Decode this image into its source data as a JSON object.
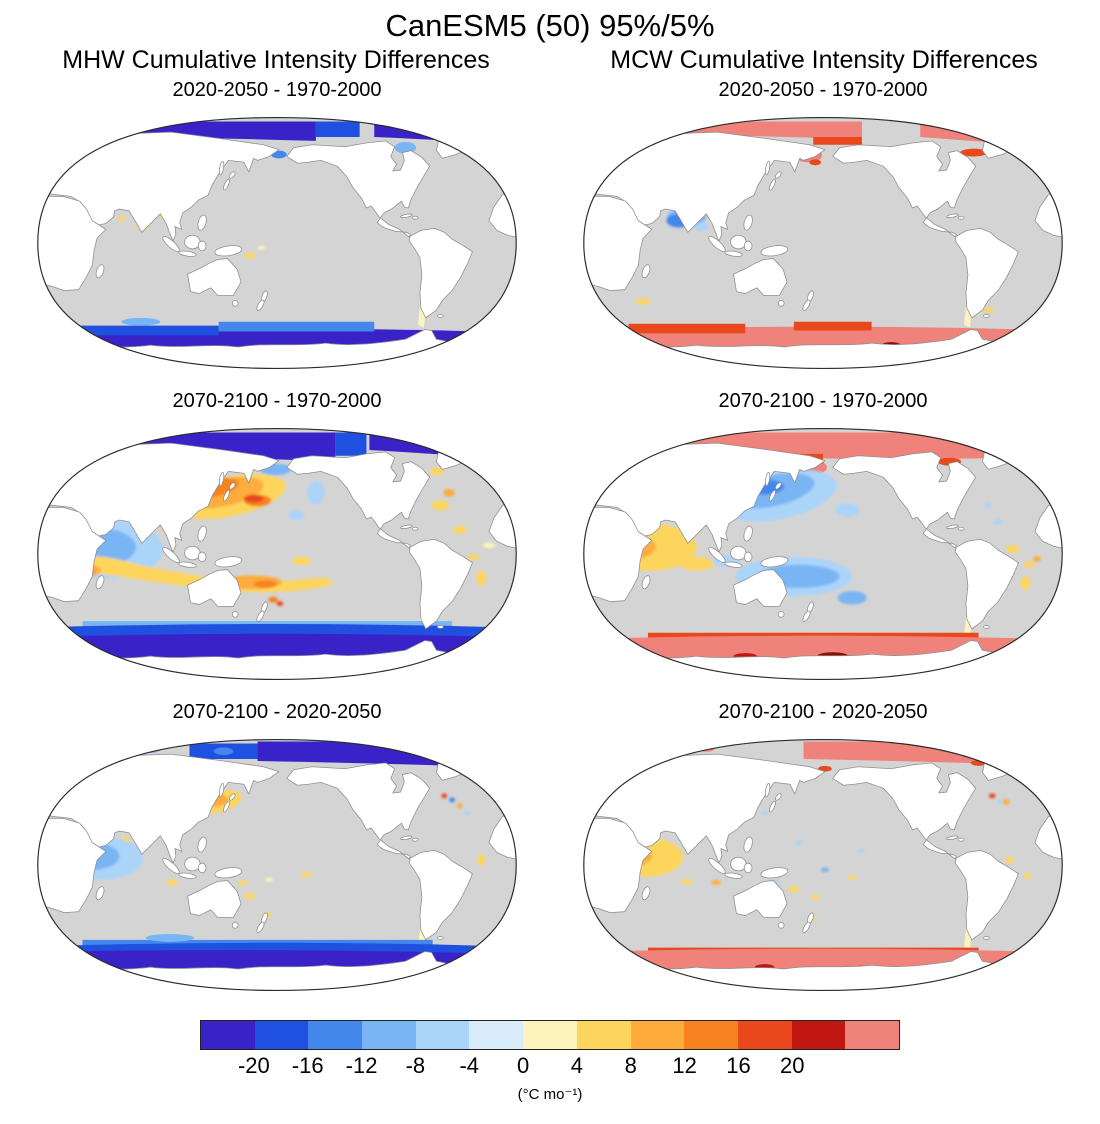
{
  "title": "CanESM5 (50) 95%/5%",
  "columns": [
    {
      "header": "MHW Cumulative Intensity Differences"
    },
    {
      "header": "MCW Cumulative Intensity Differences"
    }
  ],
  "panels": [
    {
      "title": "2020-2050 - 1970-2000"
    },
    {
      "title": "2020-2050 - 1970-2000"
    },
    {
      "title": "2070-2100 - 1970-2000"
    },
    {
      "title": "2070-2100 - 1970-2000"
    },
    {
      "title": "2070-2100 - 2020-2050"
    },
    {
      "title": "2070-2100 - 2020-2050"
    }
  ],
  "colorbar": {
    "ticks": [
      "-20",
      "-16",
      "-12",
      "-8",
      "-4",
      "0",
      "4",
      "8",
      "12",
      "16",
      "20"
    ],
    "unit_label": "(°C mo⁻¹)",
    "colors": [
      "#3A22C9",
      "#2050DF",
      "#4387EC",
      "#79B5F5",
      "#ABD4F9",
      "#D8ECFC",
      "#FBF4BC",
      "#FDD55C",
      "#FDAC3C",
      "#F8821F",
      "#E8481C",
      "#C01712",
      "#EF837B"
    ]
  },
  "chart_data": {
    "type": "heatmap",
    "figure": "Six Pacific-centered Robinson world maps of ensemble-mean cumulative intensity differences",
    "model": "CanESM5",
    "ensemble_members": 50,
    "threshold_percentiles": "95%/5%",
    "unit": "°C mo-1",
    "projection": "Robinson, Pacific-centered",
    "land_color": "#FFFFFF",
    "nosignal_color": "#D4D4D4",
    "columns": [
      "MHW Cumulative Intensity Differences",
      "MCW Cumulative Intensity Differences"
    ],
    "rows": [
      "2020-2050 - 1970-2000",
      "2070-2100 - 1970-2000",
      "2070-2100 - 2020-2050"
    ],
    "colorbar": {
      "ticks": [
        -20,
        -16,
        -12,
        -8,
        -4,
        0,
        4,
        8,
        12,
        16,
        20
      ],
      "colors": [
        "#3A22C9",
        "#2050DF",
        "#4387EC",
        "#79B5F5",
        "#ABD4F9",
        "#D8ECFC",
        "#FBF4BC",
        "#FDD55C",
        "#FDAC3C",
        "#F8821F",
        "#E8481C",
        "#C01712",
        "#EF837B"
      ],
      "under_color": "#3A22C9",
      "over_color": "#EF837B"
    },
    "panels": [
      {
        "column": "MHW",
        "period": "2020-2050 - 1970-2000",
        "pattern": "Strong negative (<-20) bands along Arctic and Southern Ocean ice edges; small positive (2-6) patches in tropical Indian Ocean and southwest Pacific; near zero elsewhere"
      },
      {
        "column": "MCW",
        "period": "2020-2050 - 1970-2000",
        "pattern": "Strong positive (>20) bands along Arctic and Southern Ocean ice edges with red fringes; small negative (-4 to -8) patch in tropical Indian Ocean; near zero elsewhere"
      },
      {
        "column": "MHW",
        "period": "2070-2100 - 1970-2000",
        "pattern": "Broad negative (<-20) Arctic and Southern Ocean bands; strong positive (8-16) blob in the North Pacific; positive band (4-12) across the southern subtropics; negative (-4 to -12) western Indian Ocean; scattered positive patches in the Atlantic"
      },
      {
        "column": "MCW",
        "period": "2070-2100 - 1970-2000",
        "pattern": "Broad positive (>20) Arctic and Southern Ocean bands; negative (-4 to -12) North Pacific blob; positive (4-16) western Indian Ocean with orange core; negative band (-4 to -8) across South Pacific subtropics; scattered Atlantic patches"
      },
      {
        "column": "MHW",
        "period": "2070-2100 - 2020-2050",
        "pattern": "Negative (<-20) Arctic band mainly on the Atlantic side plus full Southern Ocean band; smaller positive (8-14) North Pacific blob; negative (-4 to -8) western Indian Ocean; scattered weak positive patches"
      },
      {
        "column": "MCW",
        "period": "2070-2100 - 2020-2050",
        "pattern": "Positive (>20) Arctic band mainly on the Atlantic side plus full Southern Ocean band with dark red coastal patches; positive (4-14) western Indian Ocean; scattered weak patches elsewhere"
      }
    ]
  }
}
